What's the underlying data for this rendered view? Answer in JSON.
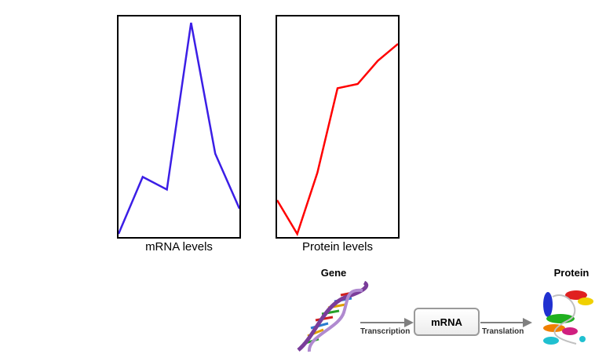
{
  "charts": {
    "mrna": {
      "caption": "mRNA levels",
      "color": "#3b1ee6"
    },
    "protein": {
      "caption": "Protein levels",
      "color": "#ff0000"
    }
  },
  "chart_data": [
    {
      "type": "line",
      "title": "mRNA levels",
      "x": [
        0,
        1,
        2,
        3,
        4,
        5
      ],
      "values": [
        0,
        0.27,
        0.21,
        1.0,
        0.38,
        0.12
      ],
      "ylim": [
        0,
        1
      ],
      "grid": false
    },
    {
      "type": "line",
      "title": "Protein levels",
      "x": [
        0,
        1,
        2,
        3,
        4,
        5,
        6
      ],
      "values": [
        0.16,
        0.0,
        0.29,
        0.69,
        0.71,
        0.82,
        0.9
      ],
      "ylim": [
        0,
        1
      ],
      "grid": false
    }
  ],
  "diagram": {
    "gene_label": "Gene",
    "mrna_label": "mRNA",
    "protein_label": "Protein",
    "transcription_label": "Transcription",
    "translation_label": "Translation",
    "arrow_color": "#808080"
  }
}
